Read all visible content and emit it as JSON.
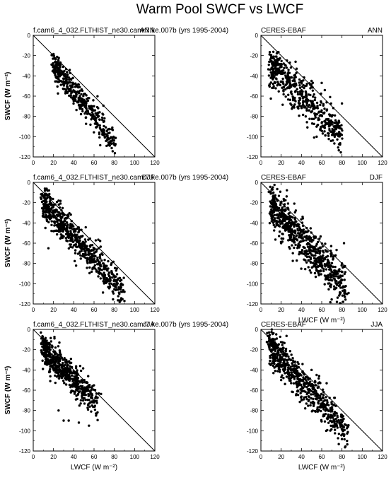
{
  "figure": {
    "title": "Warm Pool SWCF vs LWCF"
  },
  "chart_data": [
    {
      "type": "scatter",
      "panel": "model-ANN",
      "left_label": "f.cam6_4_032.FLTHIST_ne30.camr7.ke.007b (yrs 1995-2004)",
      "right_label": "ANN",
      "xlabel": "",
      "ylabel": "SWCF (W m⁻²)",
      "xlim": [
        0,
        120
      ],
      "ylim": [
        -120,
        0
      ],
      "x_ticks": [
        "0",
        "20",
        "40",
        "60",
        "80",
        "100",
        "120"
      ],
      "y_ticks": [
        "-120",
        "-100",
        "-80",
        "-60",
        "-40",
        "-20",
        "0"
      ],
      "reference_line": "one-to-one",
      "cloud": {
        "x_range": [
          20,
          80
        ],
        "intercept": -5,
        "slope": -1.25,
        "spread": 7,
        "n": 420,
        "seed": 11,
        "anchors": [
          [
            22,
            -26
          ],
          [
            25,
            -28
          ],
          [
            30,
            -36
          ],
          [
            40,
            -48
          ],
          [
            50,
            -58
          ],
          [
            60,
            -70
          ],
          [
            70,
            -85
          ],
          [
            78,
            -104
          ],
          [
            80,
            -108
          ]
        ]
      }
    },
    {
      "type": "scatter",
      "panel": "obs-ANN",
      "left_label": "CERES-EBAF",
      "right_label": "ANN",
      "xlabel": "",
      "ylabel": "",
      "xlim": [
        0,
        120
      ],
      "ylim": [
        -120,
        0
      ],
      "x_ticks": [
        "0",
        "20",
        "40",
        "60",
        "80",
        "100",
        "120"
      ],
      "y_ticks": [
        "-120",
        "-100",
        "-80",
        "-60",
        "-40",
        "-20",
        "0"
      ],
      "reference_line": "one-to-one",
      "cloud": {
        "x_range": [
          10,
          80
        ],
        "intercept": -20,
        "slope": -1.0,
        "spread": 10,
        "n": 520,
        "seed": 23,
        "anchors": [
          [
            12,
            -34
          ],
          [
            15,
            -35
          ],
          [
            20,
            -38
          ],
          [
            50,
            -45
          ],
          [
            60,
            -47
          ],
          [
            55,
            -100
          ],
          [
            40,
            -70
          ],
          [
            72,
            -90
          ]
        ]
      }
    },
    {
      "type": "scatter",
      "panel": "model-DJF",
      "left_label": "f.cam6_4_032.FLTHIST_ne30.camr7.ke.007b (yrs 1995-2004)",
      "right_label": "DJF",
      "xlabel": "",
      "ylabel": "SWCF (W m⁻²)",
      "xlim": [
        0,
        120
      ],
      "ylim": [
        -120,
        0
      ],
      "x_ticks": [
        "0",
        "20",
        "40",
        "60",
        "80",
        "100",
        "120"
      ],
      "y_ticks": [
        "-120",
        "-100",
        "-80",
        "-60",
        "-40",
        "-20",
        "0"
      ],
      "reference_line": "one-to-one",
      "cloud": {
        "x_range": [
          10,
          88
        ],
        "intercept": -10,
        "slope": -1.1,
        "spread": 8,
        "n": 650,
        "seed": 37,
        "anchors": [
          [
            12,
            -20
          ],
          [
            15,
            -22
          ],
          [
            20,
            -22
          ],
          [
            12,
            -45
          ],
          [
            15,
            -65
          ],
          [
            80,
            -100
          ],
          [
            85,
            -110
          ],
          [
            90,
            -117
          ]
        ]
      }
    },
    {
      "type": "scatter",
      "panel": "obs-DJF",
      "left_label": "CERES-EBAF",
      "right_label": "DJF",
      "xlabel": "LWCF (W m⁻²)",
      "ylabel": "",
      "xlim": [
        0,
        120
      ],
      "ylim": [
        -120,
        0
      ],
      "x_ticks": [
        "0",
        "20",
        "40",
        "60",
        "80",
        "100",
        "120"
      ],
      "y_ticks": [
        "-120",
        "-100",
        "-80",
        "-60",
        "-40",
        "-20",
        "0"
      ],
      "reference_line": "one-to-one",
      "cloud": {
        "x_range": [
          10,
          85
        ],
        "intercept": -12,
        "slope": -1.1,
        "spread": 10,
        "n": 700,
        "seed": 53,
        "anchors": [
          [
            12,
            -22
          ],
          [
            15,
            -25
          ],
          [
            80,
            -80
          ],
          [
            78,
            -110
          ],
          [
            75,
            -118
          ],
          [
            20,
            -60
          ],
          [
            82,
            -60
          ]
        ]
      }
    },
    {
      "type": "scatter",
      "panel": "model-JJA",
      "left_label": "f.cam6_4_032.FLTHIST_ne30.camr7.ke.007b (yrs 1995-2004)",
      "right_label": "JJA",
      "xlabel": "LWCF (W m⁻²)",
      "ylabel": "SWCF (W m⁻²)",
      "xlim": [
        0,
        120
      ],
      "ylim": [
        -120,
        0
      ],
      "x_ticks": [
        "0",
        "20",
        "40",
        "60",
        "80",
        "100",
        "120"
      ],
      "y_ticks": [
        "-120",
        "-100",
        "-80",
        "-60",
        "-40",
        "-20",
        "0"
      ],
      "reference_line": "one-to-one",
      "cloud": {
        "x_range": [
          10,
          63
        ],
        "intercept": -10,
        "slope": -1.0,
        "spread": 8,
        "n": 560,
        "seed": 71,
        "anchors": [
          [
            12,
            -18
          ],
          [
            15,
            -22
          ],
          [
            60,
            -72
          ],
          [
            62,
            -85
          ],
          [
            25,
            -80
          ],
          [
            30,
            -90
          ],
          [
            35,
            -90
          ],
          [
            45,
            -92
          ],
          [
            55,
            -95
          ]
        ]
      }
    },
    {
      "type": "scatter",
      "panel": "obs-JJA",
      "left_label": "CERES-EBAF",
      "right_label": "JJA",
      "xlabel": "LWCF (W m⁻²)",
      "ylabel": "",
      "xlim": [
        0,
        120
      ],
      "ylim": [
        -120,
        0
      ],
      "x_ticks": [
        "0",
        "20",
        "40",
        "60",
        "80",
        "100",
        "120"
      ],
      "y_ticks": [
        "-120",
        "-100",
        "-80",
        "-60",
        "-40",
        "-20",
        "0"
      ],
      "reference_line": "one-to-one",
      "cloud": {
        "x_range": [
          8,
          85
        ],
        "intercept": -5,
        "slope": -1.15,
        "spread": 9,
        "n": 640,
        "seed": 97,
        "anchors": [
          [
            8,
            -12
          ],
          [
            10,
            -15
          ],
          [
            82,
            -105
          ],
          [
            85,
            -110
          ],
          [
            50,
            -40
          ],
          [
            55,
            -45
          ],
          [
            20,
            -50
          ]
        ]
      }
    }
  ]
}
